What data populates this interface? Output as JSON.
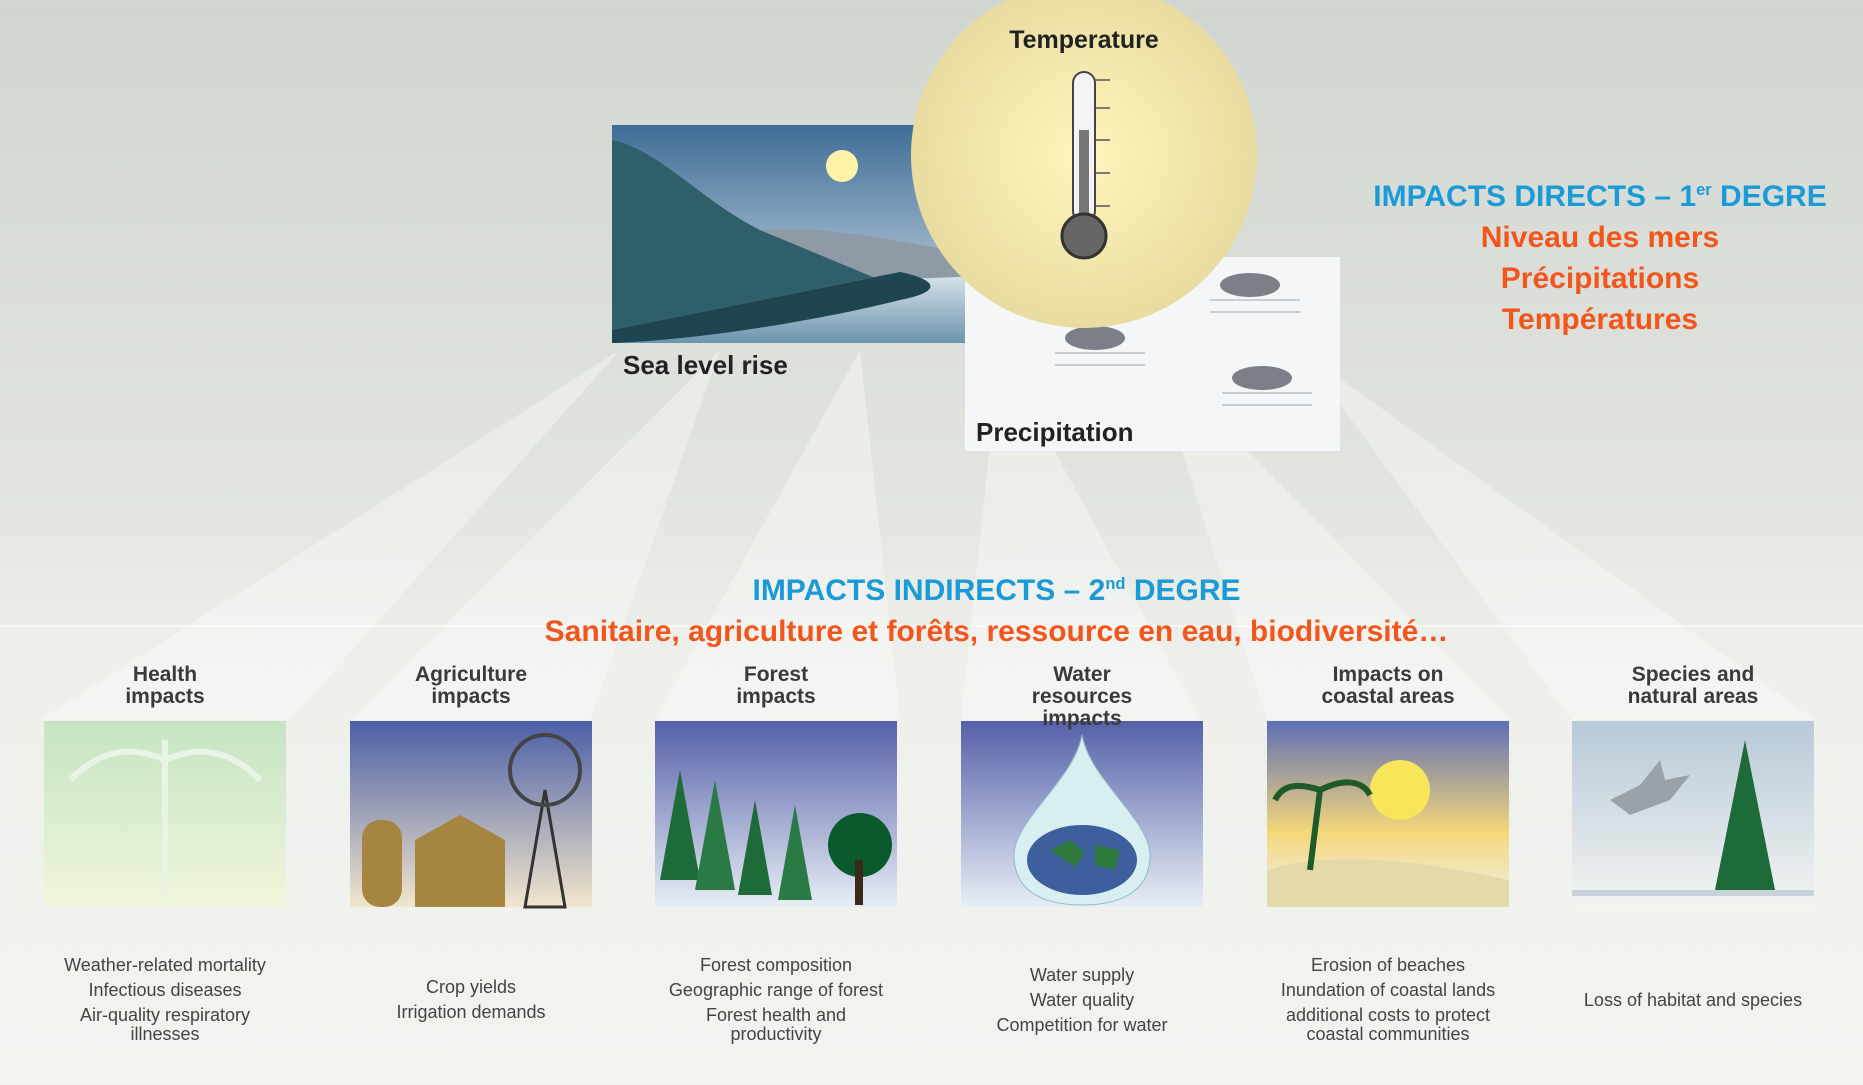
{
  "top": {
    "temperature": "Temperature",
    "sea_level": "Sea level rise",
    "precipitation": "Precipitation"
  },
  "direct": {
    "heading": {
      "text": "IMPACTS DIRECTS – 1",
      "sup": "er",
      "rest": " DEGRE"
    },
    "lines": [
      "Niveau des mers",
      "Précipitations",
      "Températures"
    ]
  },
  "indirect": {
    "heading": {
      "text": "IMPACTS INDIRECTS – 2",
      "sup": "nd",
      "rest": " DEGRE"
    },
    "subtitle": "Sanitaire, agriculture et forêts, ressource en eau, biodiversité…"
  },
  "panels": [
    {
      "title": "Health impacts",
      "items": [
        "Weather-related mortality",
        "Infectious diseases",
        "Air-quality respiratory illnesses"
      ]
    },
    {
      "title": "Agriculture impacts",
      "items": [
        "Crop yields",
        "Irrigation demands"
      ]
    },
    {
      "title": "Forest impacts",
      "items": [
        "Forest composition",
        "Geographic range of forest",
        "Forest health and productivity"
      ]
    },
    {
      "title": "Water resources impacts",
      "items": [
        "Water supply",
        "Water quality",
        "Competition for water"
      ]
    },
    {
      "title": "Impacts on coastal areas",
      "items": [
        "Erosion of beaches",
        "Inundation of coastal lands",
        "additional costs to protect coastal communities"
      ]
    },
    {
      "title": "Species and natural areas",
      "items": [
        "Loss of habitat and species"
      ]
    }
  ]
}
